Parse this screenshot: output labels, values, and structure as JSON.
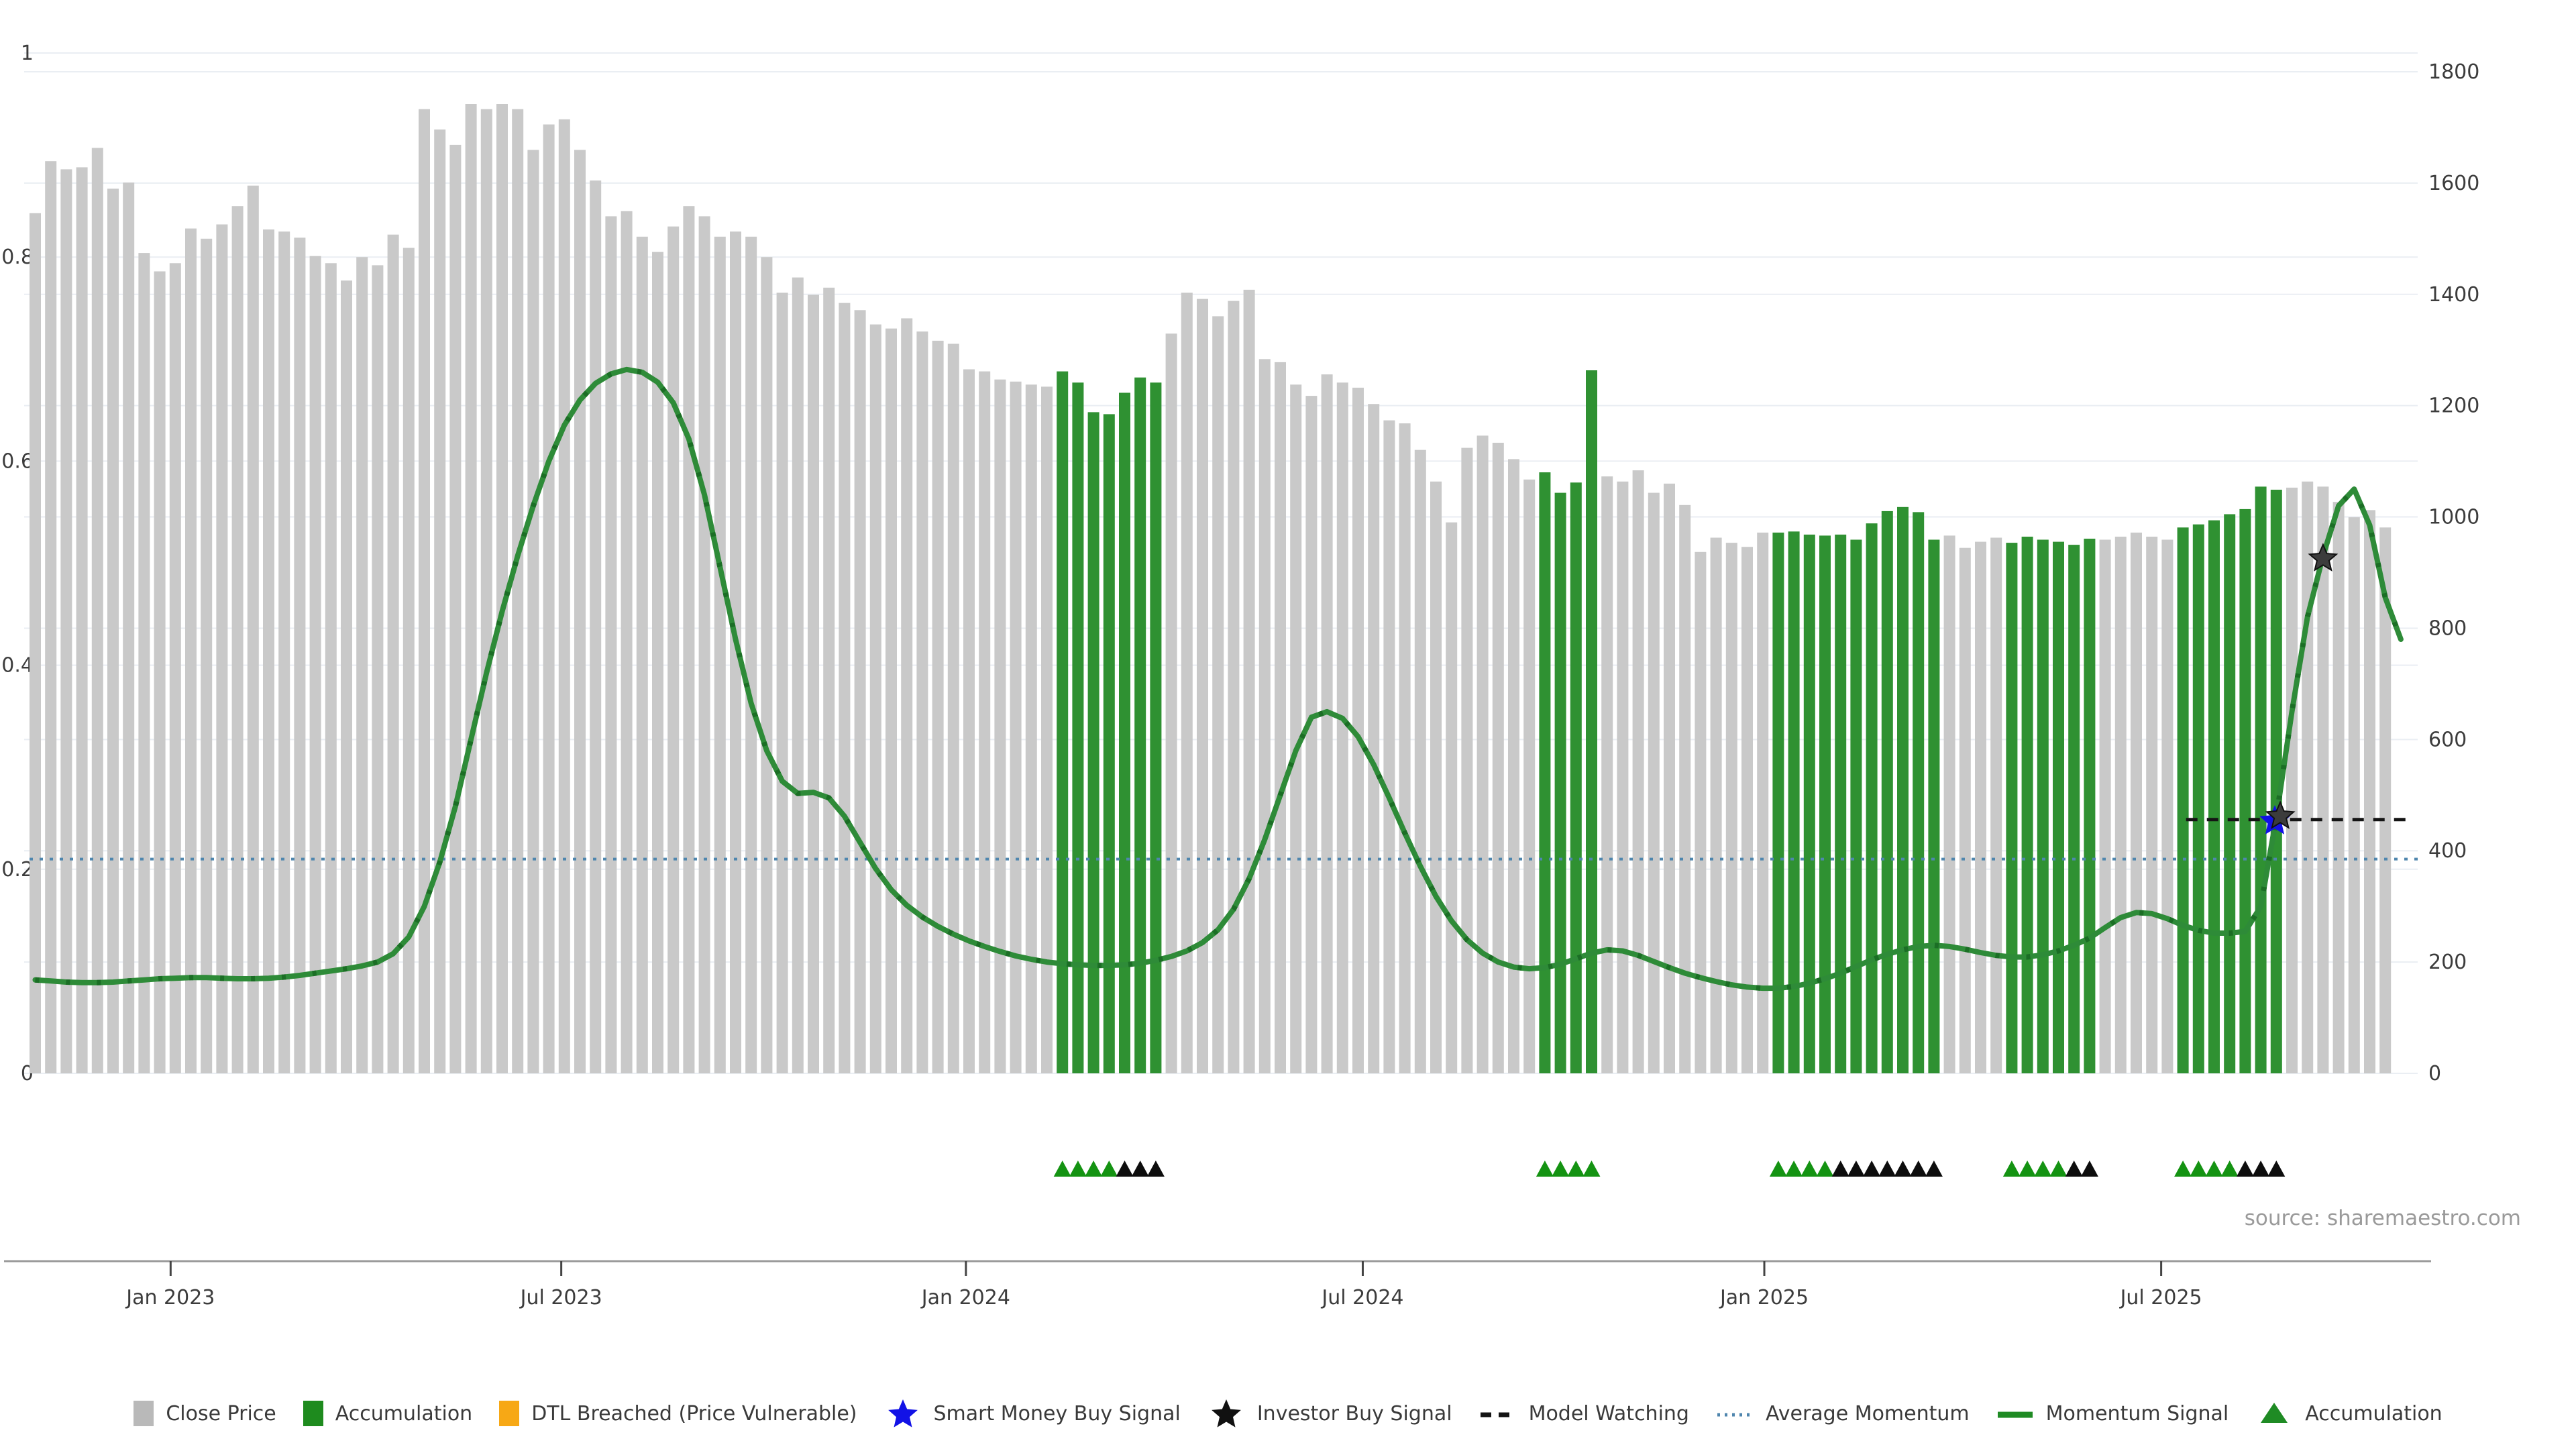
{
  "source_note": "source: sharemaestro.com",
  "legend": {
    "items": [
      {
        "id": "close-price",
        "label": "Close Price",
        "swatch": "square",
        "color": "#b9b9b9"
      },
      {
        "id": "accumulation",
        "label": "Accumulation",
        "swatch": "square",
        "color": "#1e8b1e"
      },
      {
        "id": "dtl-breached",
        "label": "DTL Breached (Price Vulnerable)",
        "swatch": "square",
        "color": "#f7a815"
      },
      {
        "id": "smart-money-buy-signal",
        "label": "Smart Money Buy Signal",
        "swatch": "star",
        "color": "#1212e6"
      },
      {
        "id": "investor-buy-signal",
        "label": "Investor Buy Signal",
        "swatch": "star",
        "color": "#111111"
      },
      {
        "id": "model-watching",
        "label": "Model Watching",
        "swatch": "dashed-line",
        "color": "#141414"
      },
      {
        "id": "average-momentum",
        "label": "Average Momentum",
        "swatch": "dotted-line",
        "color": "#4f86ae"
      },
      {
        "id": "momentum-signal",
        "label": "Momentum Signal",
        "swatch": "line",
        "color": "#1f8b24"
      },
      {
        "id": "accumulation-marker",
        "label": "Accumulation",
        "swatch": "triangle",
        "color": "#1f8b24"
      }
    ]
  },
  "chart_data": {
    "type": "bar",
    "subtype": "weekly price bars with momentum line overlay",
    "title": "",
    "grid": true,
    "left_axis": {
      "range": [
        0,
        1
      ],
      "tick_values": [
        1,
        0.8,
        0.6,
        0.4,
        0.2,
        0
      ],
      "tick_labels": [
        "1",
        "0.8",
        "0.6",
        "0.4",
        "0.2",
        "0"
      ]
    },
    "right_axis": {
      "range": [
        0,
        1800
      ],
      "tick_values": [
        1800,
        1600,
        1400,
        1200,
        1000,
        800,
        600,
        400,
        200,
        0
      ],
      "tick_labels": [
        "1800",
        "1600",
        "1400",
        "1200",
        "1000",
        "800",
        "600",
        "400",
        "200",
        "0"
      ]
    },
    "x_axis": {
      "tick_labels": [
        "Jan 2023",
        "Jul 2023",
        "Jan 2024",
        "Jul 2024",
        "Jan 2025",
        "Jul 2025"
      ],
      "tick_indices": [
        8.7,
        33.8,
        59.8,
        85.3,
        111.1,
        136.6
      ]
    },
    "series": [
      {
        "name": "Close Price",
        "type": "bar",
        "axis": "left",
        "values": [
          0.843,
          0.894,
          0.886,
          0.888,
          0.907,
          0.867,
          0.873,
          0.804,
          0.786,
          0.794,
          0.828,
          0.818,
          0.832,
          0.85,
          0.87,
          0.827,
          0.825,
          0.819,
          0.801,
          0.794,
          0.777,
          0.8,
          0.792,
          0.822,
          0.809,
          0.945,
          0.925,
          0.91,
          0.95,
          0.945,
          0.95,
          0.945,
          0.905,
          0.93,
          0.935,
          0.905,
          0.875,
          0.84,
          0.845,
          0.82,
          0.805,
          0.83,
          0.85,
          0.84,
          0.82,
          0.825,
          0.82,
          0.8,
          0.765,
          0.78,
          0.763,
          0.77,
          0.755,
          0.748,
          0.734,
          0.73,
          0.74,
          0.727,
          0.718,
          0.715,
          0.69,
          0.688,
          0.68,
          0.678,
          0.675,
          0.673,
          0.688,
          0.677,
          0.648,
          0.646,
          0.667,
          0.682,
          0.677,
          0.725,
          0.765,
          0.759,
          0.742,
          0.757,
          0.768,
          0.7,
          0.697,
          0.675,
          0.664,
          0.685,
          0.677,
          0.672,
          0.656,
          0.64,
          0.637,
          0.611,
          0.58,
          0.54,
          0.613,
          0.625,
          0.618,
          0.602,
          0.582,
          0.589,
          0.569,
          0.579,
          0.689,
          0.585,
          0.58,
          0.591,
          0.569,
          0.578,
          0.557,
          0.511,
          0.525,
          0.52,
          0.516,
          0.53,
          0.53,
          0.531,
          0.528,
          0.527,
          0.528,
          0.523,
          0.539,
          0.551,
          0.555,
          0.55,
          0.523,
          0.527,
          0.515,
          0.521,
          0.525,
          0.52,
          0.526,
          0.523,
          0.521,
          0.518,
          0.524,
          0.523,
          0.526,
          0.53,
          0.526,
          0.523,
          0.535,
          0.538,
          0.542,
          0.548,
          0.553,
          0.575,
          0.572,
          0.574,
          0.58,
          0.575,
          0.56,
          0.545,
          0.552,
          0.535
        ]
      },
      {
        "name": "Momentum Signal",
        "type": "line",
        "axis": "right",
        "values": [
          168,
          166,
          164,
          163,
          163,
          164,
          166,
          168,
          170,
          171,
          172,
          172,
          171,
          170,
          170,
          171,
          173,
          176,
          180,
          184,
          188,
          193,
          200,
          215,
          245,
          300,
          380,
          480,
          600,
          720,
          830,
          930,
          1020,
          1100,
          1165,
          1210,
          1240,
          1257,
          1265,
          1260,
          1242,
          1205,
          1140,
          1040,
          910,
          780,
          665,
          580,
          525,
          503,
          505,
          495,
          462,
          415,
          368,
          330,
          302,
          281,
          264,
          250,
          238,
          228,
          219,
          211,
          205,
          200,
          197,
          195,
          194,
          194,
          195,
          198,
          203,
          210,
          220,
          235,
          258,
          295,
          350,
          420,
          500,
          580,
          640,
          650,
          638,
          605,
          555,
          495,
          432,
          372,
          318,
          274,
          240,
          216,
          200,
          191,
          188,
          190,
          196,
          206,
          216,
          222,
          220,
          212,
          201,
          190,
          180,
          172,
          165,
          159,
          155,
          153,
          153,
          156,
          162,
          170,
          180,
          192,
          204,
          214,
          222,
          228,
          230,
          228,
          223,
          217,
          212,
          209,
          209,
          213,
          220,
          230,
          243,
          262,
          280,
          289,
          287,
          278,
          266,
          257,
          252,
          252,
          255,
          300,
          460,
          650,
          820,
          930,
          1020,
          1050,
          985,
          855,
          780
        ]
      }
    ],
    "accumulation_bar_ranges": [
      [
        66,
        72
      ],
      [
        97,
        100
      ],
      [
        112,
        122
      ],
      [
        127,
        132
      ],
      [
        138,
        144
      ]
    ],
    "average_momentum": {
      "value": 385,
      "axis": "right",
      "style": "dotted"
    },
    "model_watching": {
      "value": 456,
      "axis": "right",
      "from_index": 138.2,
      "style": "dashed"
    },
    "buy_signals": [
      {
        "type": "smart_money",
        "index": 143.9,
        "value": 453
      },
      {
        "type": "investor",
        "index": 144.25,
        "value": 462
      },
      {
        "type": "investor",
        "index": 147.0,
        "value": 925
      }
    ],
    "accumulation_marker_groups": [
      {
        "start_index": 66,
        "green": 4,
        "black": 3
      },
      {
        "start_index": 97,
        "green": 4,
        "black": 0
      },
      {
        "start_index": 112,
        "green": 4,
        "black": 7
      },
      {
        "start_index": 127,
        "green": 4,
        "black": 2
      },
      {
        "start_index": 138,
        "green": 4,
        "black": 3
      }
    ],
    "colors": {
      "close_bar": "#c9c9c9",
      "accumulation_bar": "#2f9132",
      "momentum_line": "#2e8b38",
      "momentum_dash": "#1b6e25",
      "average_momentum": "#4f86ae",
      "model_watching": "#141414",
      "smart_money_star": "#1212e6",
      "investor_star": "#3c3c3c",
      "marker_green": "#149312",
      "marker_black": "#0d0d0d",
      "gridline": "#eaeef3",
      "axis_line": "#9b9b9b",
      "axis_text": "#3c3c3c"
    }
  }
}
